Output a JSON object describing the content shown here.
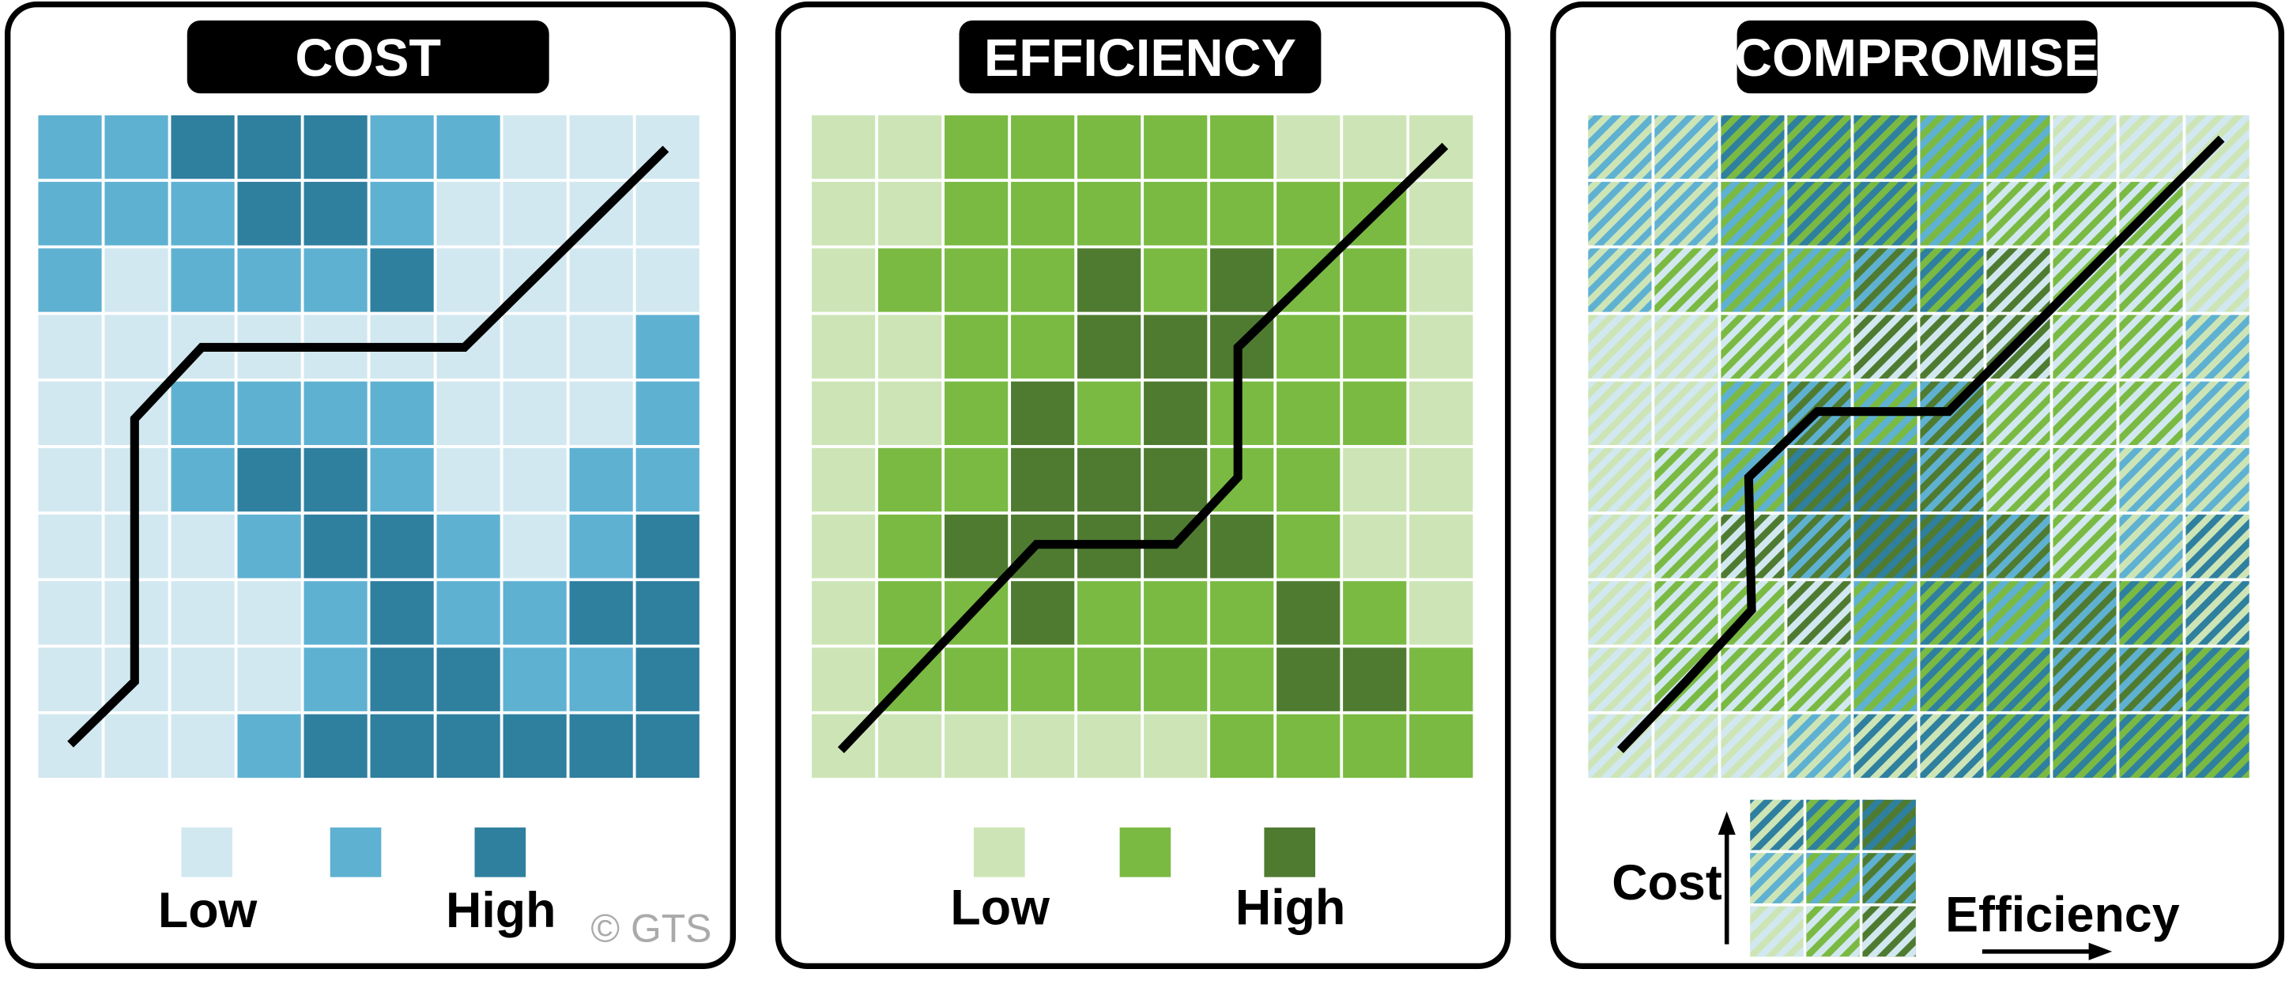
{
  "panels": [
    {
      "title": "COST",
      "colors": [
        "#d2e8f0",
        "#5fb1d2",
        "#2f7f9f"
      ],
      "legend_low": "Low",
      "legend_high": "High",
      "levels": [
        [
          2,
          2,
          3,
          3,
          3,
          2,
          2,
          1,
          1,
          1
        ],
        [
          2,
          2,
          2,
          3,
          3,
          2,
          1,
          1,
          1,
          1
        ],
        [
          2,
          1,
          2,
          2,
          2,
          3,
          1,
          1,
          1,
          1
        ],
        [
          1,
          1,
          1,
          1,
          1,
          1,
          1,
          1,
          1,
          2
        ],
        [
          1,
          1,
          2,
          2,
          2,
          2,
          1,
          1,
          1,
          2
        ],
        [
          1,
          1,
          2,
          3,
          3,
          2,
          1,
          1,
          2,
          2
        ],
        [
          1,
          1,
          1,
          2,
          3,
          3,
          2,
          1,
          2,
          3
        ],
        [
          1,
          1,
          1,
          1,
          2,
          3,
          2,
          2,
          3,
          3
        ],
        [
          1,
          1,
          1,
          1,
          2,
          3,
          3,
          2,
          2,
          3
        ],
        [
          1,
          1,
          1,
          2,
          3,
          3,
          3,
          3,
          3,
          3
        ]
      ]
    },
    {
      "title": "EFFICIENCY",
      "colors": [
        "#cde5b6",
        "#7aba43",
        "#4f7b31"
      ],
      "legend_low": "Low",
      "legend_high": "High",
      "levels": [
        [
          1,
          1,
          2,
          2,
          2,
          2,
          2,
          1,
          1,
          1
        ],
        [
          1,
          1,
          2,
          2,
          2,
          2,
          2,
          2,
          2,
          1
        ],
        [
          1,
          2,
          2,
          2,
          3,
          2,
          3,
          2,
          2,
          1
        ],
        [
          1,
          1,
          2,
          2,
          3,
          3,
          3,
          2,
          2,
          1
        ],
        [
          1,
          1,
          2,
          3,
          2,
          3,
          2,
          2,
          2,
          1
        ],
        [
          1,
          2,
          2,
          3,
          3,
          3,
          2,
          2,
          1,
          1
        ],
        [
          1,
          2,
          3,
          3,
          3,
          3,
          3,
          2,
          1,
          1
        ],
        [
          1,
          2,
          2,
          3,
          2,
          2,
          2,
          3,
          2,
          1
        ],
        [
          1,
          2,
          2,
          2,
          2,
          2,
          2,
          3,
          3,
          2
        ],
        [
          1,
          1,
          1,
          1,
          1,
          1,
          2,
          2,
          2,
          2
        ]
      ]
    }
  ],
  "compromise": {
    "title": "COMPROMISE",
    "y_label": "Cost",
    "x_label": "Efficiency"
  },
  "copyright": "© GTS"
}
